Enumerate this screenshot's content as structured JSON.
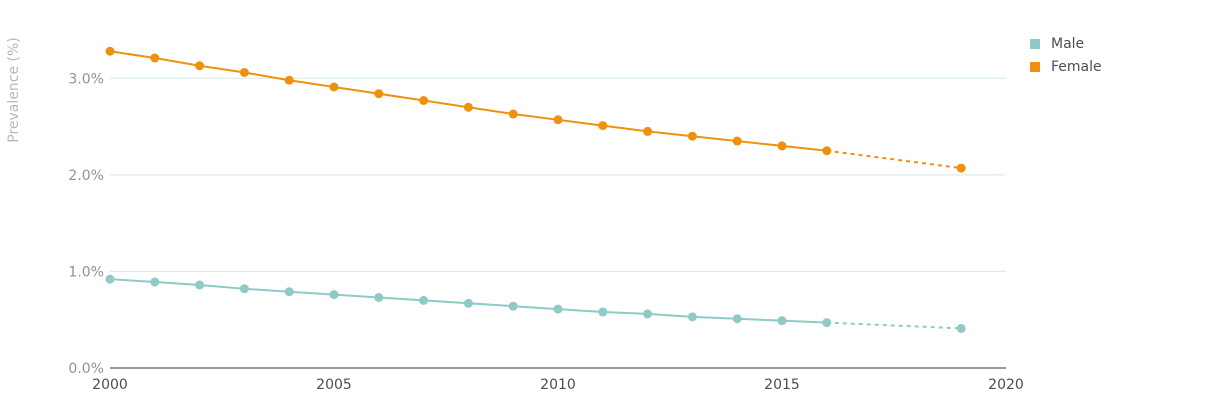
{
  "chart_data": {
    "type": "line",
    "ylabel": "Prevalence (%)",
    "xlabel": "",
    "xlim": [
      2000,
      2020
    ],
    "ylim": [
      0,
      3.5
    ],
    "x_ticks": [
      2000,
      2005,
      2010,
      2015,
      2020
    ],
    "x_tick_labels": [
      "2000",
      "2005",
      "2010",
      "2015",
      "2020"
    ],
    "y_ticks": [
      0,
      1,
      2,
      3
    ],
    "y_tick_labels": [
      "0.0%",
      "1.0%",
      "2.0%",
      "3.0%"
    ],
    "grid": "horizontal",
    "legend_position": "top-right",
    "series": [
      {
        "name": "Male",
        "color": "#8ecac6",
        "x": [
          2000,
          2001,
          2002,
          2003,
          2004,
          2005,
          2006,
          2007,
          2008,
          2009,
          2010,
          2011,
          2012,
          2013,
          2014,
          2015,
          2016,
          2019
        ],
        "values": [
          0.92,
          0.89,
          0.86,
          0.82,
          0.79,
          0.76,
          0.73,
          0.7,
          0.67,
          0.64,
          0.61,
          0.58,
          0.56,
          0.53,
          0.51,
          0.49,
          0.47,
          0.41
        ],
        "dashed_from_x": 2016
      },
      {
        "name": "Female",
        "color": "#f0900f",
        "x": [
          2000,
          2001,
          2002,
          2003,
          2004,
          2005,
          2006,
          2007,
          2008,
          2009,
          2010,
          2011,
          2012,
          2013,
          2014,
          2015,
          2016,
          2019
        ],
        "values": [
          3.28,
          3.21,
          3.13,
          3.06,
          2.98,
          2.91,
          2.84,
          2.77,
          2.7,
          2.63,
          2.57,
          2.51,
          2.45,
          2.4,
          2.35,
          2.3,
          2.25,
          2.07
        ],
        "dashed_from_x": 2016
      }
    ]
  }
}
